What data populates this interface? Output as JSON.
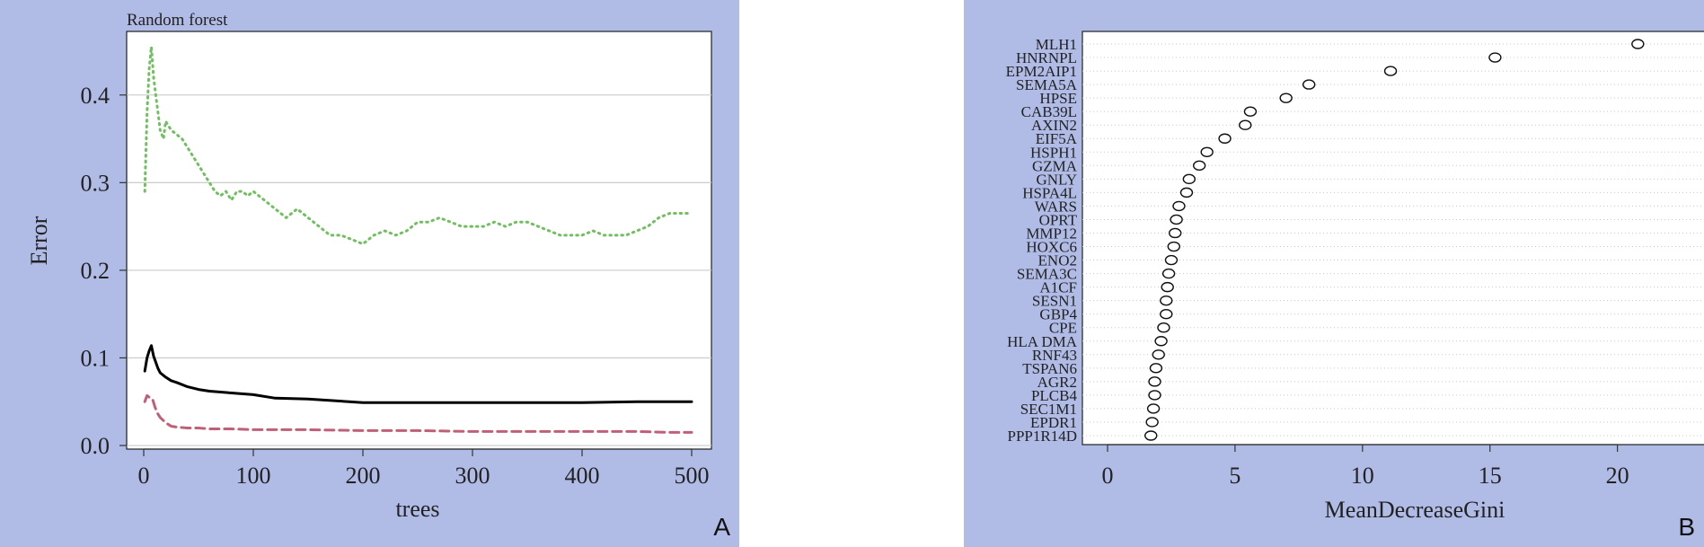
{
  "panel_labels": {
    "a": "A",
    "b": "B"
  },
  "chart_data": [
    {
      "type": "line",
      "title": "Random forest",
      "xlabel": "trees",
      "ylabel": "Error",
      "xlim": [
        0,
        500
      ],
      "ylim": [
        0,
        0.45
      ],
      "xticks": [
        "0",
        "100",
        "200",
        "300",
        "400",
        "500"
      ],
      "yticks": [
        "0.0",
        "0.1",
        "0.2",
        "0.3",
        "0.4"
      ],
      "grid": "horizontal",
      "colors": {
        "series1": "#000000",
        "series2": "#c06078",
        "series3": "#70c060"
      },
      "series": [
        {
          "x": [
            1,
            3,
            5,
            7,
            9,
            11,
            13,
            15,
            20,
            25,
            30,
            40,
            50,
            60,
            80,
            100,
            120,
            150,
            200,
            250,
            300,
            350,
            400,
            450,
            500
          ],
          "y": [
            0.085,
            0.1,
            0.108,
            0.114,
            0.102,
            0.095,
            0.088,
            0.083,
            0.078,
            0.074,
            0.072,
            0.067,
            0.064,
            0.062,
            0.06,
            0.058,
            0.054,
            0.053,
            0.049,
            0.049,
            0.049,
            0.049,
            0.049,
            0.05,
            0.05
          ],
          "style": "solid"
        },
        {
          "x": [
            1,
            3,
            5,
            8,
            10,
            12,
            15,
            20,
            25,
            30,
            40,
            50,
            60,
            80,
            100,
            150,
            200,
            250,
            300,
            350,
            400,
            450,
            480,
            500
          ],
          "y": [
            0.05,
            0.057,
            0.055,
            0.053,
            0.045,
            0.038,
            0.032,
            0.026,
            0.022,
            0.021,
            0.02,
            0.02,
            0.019,
            0.019,
            0.018,
            0.018,
            0.017,
            0.017,
            0.016,
            0.016,
            0.016,
            0.016,
            0.015,
            0.015
          ],
          "style": "dashed"
        },
        {
          "x": [
            1,
            3,
            5,
            7,
            9,
            11,
            13,
            15,
            18,
            20,
            25,
            30,
            35,
            40,
            45,
            50,
            55,
            60,
            65,
            70,
            75,
            80,
            85,
            90,
            95,
            100,
            110,
            120,
            130,
            140,
            150,
            160,
            170,
            180,
            190,
            200,
            210,
            220,
            230,
            240,
            250,
            260,
            270,
            280,
            290,
            300,
            310,
            320,
            330,
            340,
            350,
            360,
            370,
            380,
            390,
            400,
            410,
            420,
            430,
            440,
            450,
            460,
            470,
            480,
            490,
            500
          ],
          "y": [
            0.29,
            0.38,
            0.43,
            0.455,
            0.42,
            0.4,
            0.38,
            0.36,
            0.35,
            0.37,
            0.36,
            0.355,
            0.35,
            0.34,
            0.33,
            0.32,
            0.31,
            0.3,
            0.29,
            0.285,
            0.29,
            0.28,
            0.29,
            0.29,
            0.285,
            0.29,
            0.28,
            0.27,
            0.26,
            0.27,
            0.26,
            0.25,
            0.24,
            0.24,
            0.235,
            0.23,
            0.24,
            0.245,
            0.24,
            0.245,
            0.255,
            0.255,
            0.26,
            0.255,
            0.25,
            0.25,
            0.25,
            0.255,
            0.25,
            0.255,
            0.255,
            0.25,
            0.245,
            0.24,
            0.24,
            0.24,
            0.245,
            0.24,
            0.24,
            0.24,
            0.245,
            0.25,
            0.26,
            0.265,
            0.265,
            0.265
          ],
          "style": "dotted"
        }
      ]
    },
    {
      "type": "scatter",
      "xlabel": "MeanDecreaseGini",
      "xlim": [
        0,
        22
      ],
      "xticks": [
        "0",
        "5",
        "10",
        "15",
        "20"
      ],
      "grid": "horizontal-dotted",
      "categories": [
        "MLH1",
        "HNRNPL",
        "EPM2AIP1",
        "SEMA5A",
        "HPSE",
        "CAB39L",
        "AXIN2",
        "EIF5A",
        "HSPH1",
        "GZMA",
        "GNLY",
        "HSPA4L",
        "WARS",
        "OPRT",
        "MMP12",
        "HOXC6",
        "ENO2",
        "SEMA3C",
        "A1CF",
        "SESN1",
        "GBP4",
        "CPE",
        "HLA DMA",
        "RNF43",
        "TSPAN6",
        "AGR2",
        "PLCB4",
        "SEC1M1",
        "EPDR1",
        "PPP1R14D"
      ],
      "values": [
        20.8,
        15.2,
        11.1,
        7.9,
        7.0,
        5.6,
        5.4,
        4.6,
        3.9,
        3.6,
        3.2,
        3.1,
        2.8,
        2.7,
        2.65,
        2.6,
        2.5,
        2.4,
        2.35,
        2.3,
        2.3,
        2.2,
        2.1,
        2.0,
        1.9,
        1.85,
        1.85,
        1.8,
        1.75,
        1.7
      ]
    }
  ]
}
